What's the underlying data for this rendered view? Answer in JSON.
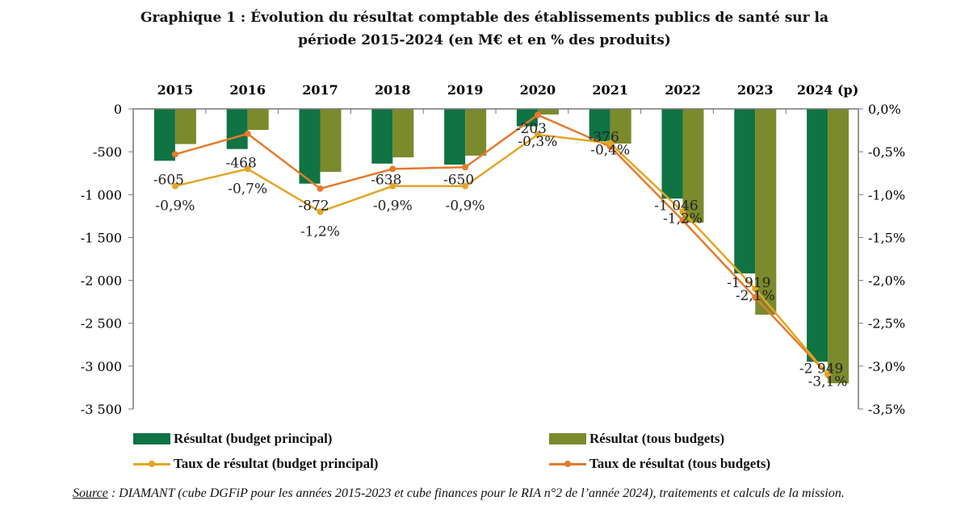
{
  "chart_data": {
    "type": "bar",
    "title": "Graphique 1 : Évolution du résultat comptable des établissements publics de santé sur la période 2015-2024 (en M€ et en % des produits)",
    "title_line1": "Graphique 1 : Évolution du résultat comptable des établissements publics de santé sur la",
    "title_line2": "période 2015-2024 (en M€ et en % des produits)",
    "categories": [
      "2015",
      "2016",
      "2017",
      "2018",
      "2019",
      "2020",
      "2021",
      "2022",
      "2023",
      "2024 (p)"
    ],
    "y_left": {
      "ylim": [
        -3500,
        0
      ],
      "ticks": [
        0,
        -500,
        -1000,
        -1500,
        -2000,
        -2500,
        -3000,
        -3500
      ],
      "tick_labels": [
        "0",
        "-500",
        "-1 000",
        "-1 500",
        "-2 000",
        "-2 500",
        "-3 000",
        "-3 500"
      ]
    },
    "y_right": {
      "ylim": [
        -3.5,
        0
      ],
      "ticks": [
        0,
        -0.5,
        -1,
        -1.5,
        -2,
        -2.5,
        -3,
        -3.5
      ],
      "tick_labels": [
        "0,0%",
        "-0,5%",
        "-1,0%",
        "-1,5%",
        "-2,0%",
        "-2,5%",
        "-3,0%",
        "-3,5%"
      ]
    },
    "category_axis_position": "top",
    "grid": false,
    "legend_placement": "bottom",
    "series": [
      {
        "name": "Résultat (budget principal)",
        "kind": "bar",
        "axis": "left",
        "color": "#0f7343",
        "values": [
          -605,
          -468,
          -872,
          -638,
          -650,
          -203,
          -376,
          -1046,
          -1919,
          -2949
        ],
        "data_labels": [
          "-605",
          "-468",
          "-872",
          "-638",
          "-650",
          "-203",
          "-376",
          "-1 046",
          "-1 919",
          "-2 949"
        ]
      },
      {
        "name": "Résultat (tous budgets)",
        "kind": "bar",
        "axis": "left",
        "color": "#7b8a2c",
        "values": [
          -410,
          -245,
          -735,
          -565,
          -545,
          -65,
          -405,
          -1325,
          -2400,
          -3200
        ]
      },
      {
        "name": "Taux de résultat (budget principal)",
        "kind": "line",
        "axis": "right",
        "color": "#e2a623",
        "values": [
          -0.9,
          -0.7,
          -1.2,
          -0.9,
          -0.9,
          -0.3,
          -0.4,
          -1.2,
          -2.1,
          -3.1
        ],
        "data_labels": [
          "-0,9%",
          "-0,7%",
          "-1,2%",
          "-0,9%",
          "-0,9%",
          "-0,3%",
          "-0,4%",
          "-1,2%",
          "-2,1%",
          "-3,1%"
        ]
      },
      {
        "name": "Taux de résultat (tous budgets)",
        "kind": "line",
        "axis": "right",
        "color": "#e57b2c",
        "values": [
          -0.53,
          -0.29,
          -0.93,
          -0.7,
          -0.68,
          -0.07,
          -0.44,
          -1.3,
          -2.2,
          -3.1
        ]
      }
    ]
  },
  "source": {
    "label": "Source",
    "text": " : DIAMANT (cube DGFiP pour les années 2015-2023 et cube finances pour le RIA n°2 de l’année 2024), traitements et calculs de la mission."
  }
}
